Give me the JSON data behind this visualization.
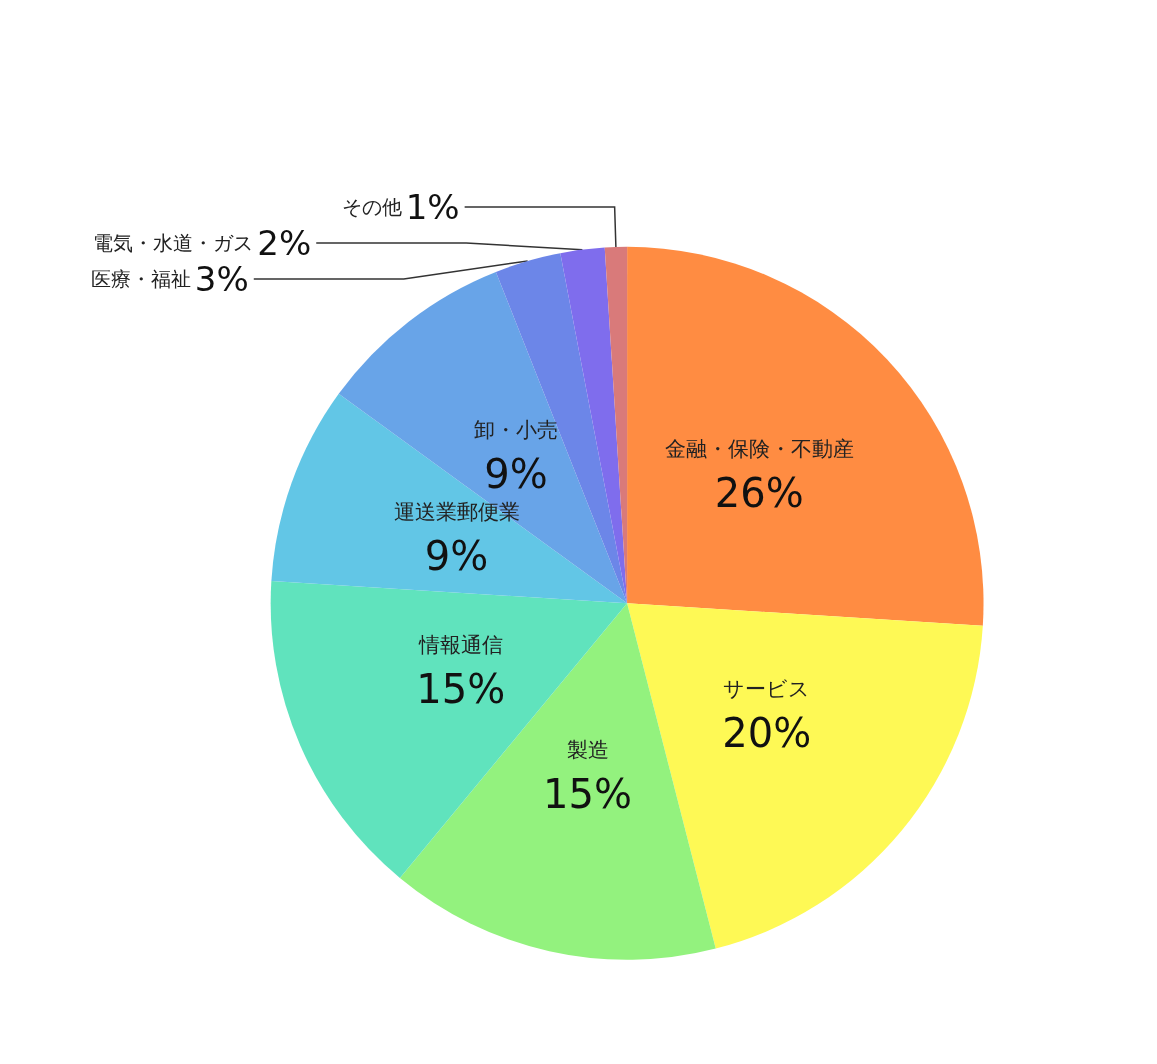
{
  "chart_data": {
    "type": "pie",
    "categories": [
      "金融・保険・不動産",
      "サービス",
      "製造",
      "情報通信",
      "運送業郵便業",
      "卸・小売",
      "医療・福祉",
      "電気・水道・ガス",
      "その他"
    ],
    "values": [
      26,
      20,
      15,
      15,
      9,
      9,
      3,
      2,
      1
    ],
    "value_labels": [
      "26%",
      "20%",
      "15%",
      "15%",
      "9%",
      "9%",
      "3%",
      "2%",
      "1%"
    ],
    "colors": [
      "#ff8c42",
      "#fef955",
      "#93f27e",
      "#60e3bd",
      "#62c6e6",
      "#68a4e8",
      "#6c86e8",
      "#7f6ded",
      "#d97a7a"
    ],
    "legend": false
  }
}
